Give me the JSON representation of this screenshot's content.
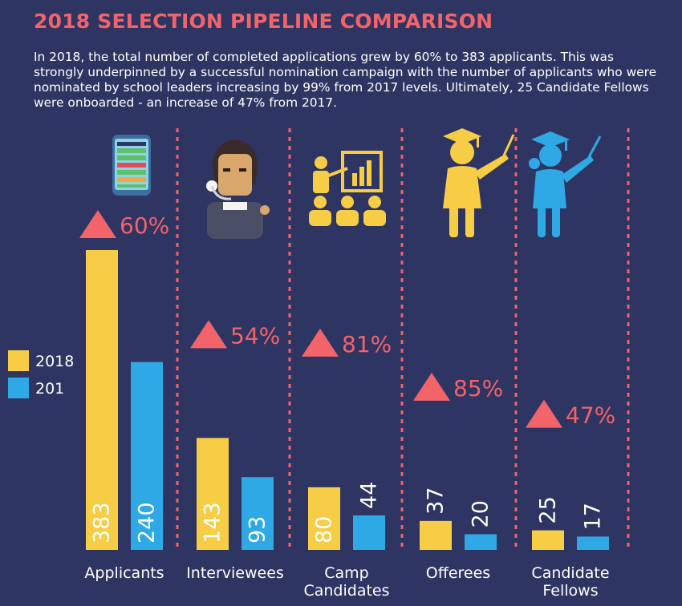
{
  "title": "2018 SELECTION PIPELINE COMPARISON",
  "intro": "In 2018, the total number of completed applications grew by 60% to 383 applicants. This was strongly underpinned by a successful nomination campaign with the number of applicants who were nominated by school leaders increasing by 99% from 2017 levels. Ultimately, 25 Candidate Fellows were onboarded - an increase of 47% from 2017.",
  "colors": {
    "background": "#2e3562",
    "series_2018": "#f7cd46",
    "series_2017": "#2ea9e6",
    "accent": "#f2636a"
  },
  "icons": [
    "phone-app-icon",
    "operator-headset-icon",
    "presenter-audience-icon",
    "teacher-graduate-icon",
    "student-graduate-icon"
  ],
  "chart_data": {
    "type": "bar",
    "title": "2018 SELECTION PIPELINE COMPARISON",
    "categories": [
      "Applicants",
      "Interviewees",
      "Camp Candidates",
      "Offerees",
      "Candidate Fellows"
    ],
    "category_lines": [
      [
        "Applicants"
      ],
      [
        "Interviewees"
      ],
      [
        "Camp",
        "Candidates"
      ],
      [
        "Offerees"
      ],
      [
        "Candidate",
        "Fellows"
      ]
    ],
    "series": [
      {
        "name": "2018",
        "values": [
          383,
          143,
          80,
          37,
          25
        ]
      },
      {
        "name": "201",
        "values": [
          240,
          93,
          44,
          20,
          17
        ]
      }
    ],
    "changes": [
      "60%",
      "54%",
      "81%",
      "85%",
      "47%"
    ],
    "ylim": [
      0,
      383
    ],
    "legend": "left",
    "grid": false
  }
}
